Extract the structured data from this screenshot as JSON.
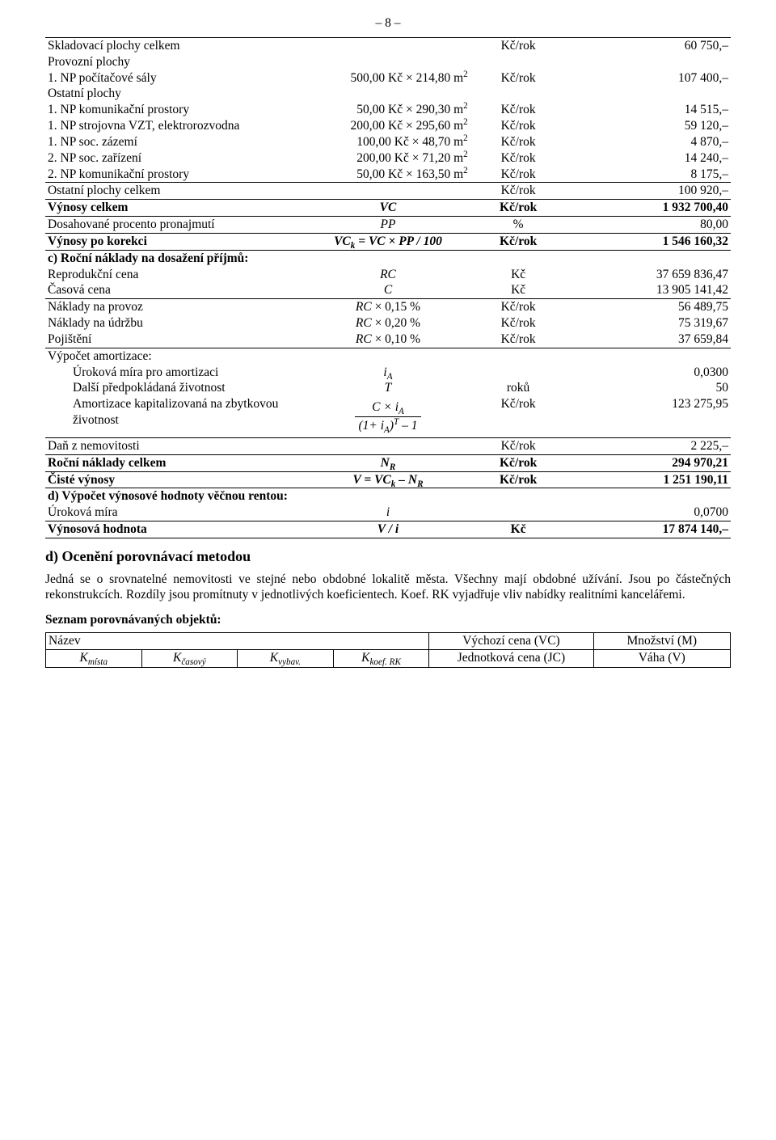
{
  "page_number": "– 8 –",
  "table": {
    "col_widths": [
      "38%",
      "24%",
      "14%",
      "24%"
    ],
    "rows": [
      {
        "c1": "Skladovací plochy celkem",
        "c2": "",
        "c3": "Kč/rok",
        "c4": "60 750,–",
        "bt": true
      },
      {
        "c1": "Provozní plochy",
        "c2": "",
        "c3": "",
        "c4": ""
      },
      {
        "c1": "1. NP počítačové sály",
        "c2_pre": "500,00 Kč × 214,80 m",
        "c2_sup": "2",
        "c3": "Kč/rok",
        "c4": "107 400,–"
      },
      {
        "c1": "Ostatní plochy",
        "c2": "",
        "c3": "",
        "c4": ""
      },
      {
        "c1": "1. NP komunikační prostory",
        "c2_pre": "50,00 Kč × 290,30 m",
        "c2_sup": "2",
        "c3": "Kč/rok",
        "c4": "14 515,–"
      },
      {
        "c1": "1. NP strojovna VZT, elektrorozvodna",
        "c2_pre": "200,00 Kč × 295,60 m",
        "c2_sup": "2",
        "c3": "Kč/rok",
        "c4": "59 120,–"
      },
      {
        "c1": "1. NP soc. zázemí",
        "c2_pre": "100,00 Kč × 48,70 m",
        "c2_sup": "2",
        "c3": "Kč/rok",
        "c4": "4 870,–"
      },
      {
        "c1": "2. NP soc. zařízení",
        "c2_pre": "200,00 Kč × 71,20 m",
        "c2_sup": "2",
        "c3": "Kč/rok",
        "c4": "14 240,–"
      },
      {
        "c1": "2. NP komunikační prostory",
        "c2_pre": "50,00 Kč × 163,50 m",
        "c2_sup": "2",
        "c3": "Kč/rok",
        "c4": "8 175,–"
      },
      {
        "c1": "Ostatní plochy celkem",
        "c2": "",
        "c3": "Kč/rok",
        "c4": "100 920,–",
        "bt": true
      },
      {
        "c1": "Výnosy celkem",
        "c2": "VC",
        "c2_i": true,
        "c3": "Kč/rok",
        "c4": "1 932 700,40",
        "bold": true,
        "bt": true,
        "bb": true
      },
      {
        "c1": "Dosahované procento pronajmutí",
        "c2": "PP",
        "c2_i": true,
        "c3": "%",
        "c4": "80,00"
      },
      {
        "c1": "Výnosy po korekci",
        "c2_html": "<i>VC<span class='sub'>k</span> = VC × PP / 100</i>",
        "c3": "Kč/rok",
        "c4": "1 546 160,32",
        "bold": true,
        "bt": true,
        "bb": true
      },
      {
        "c1": "c) Roční náklady na dosažení příjmů:",
        "colspan4": true,
        "bold": true
      },
      {
        "c1": "Reprodukční cena",
        "c2": "RC",
        "c2_i": true,
        "c3": "Kč",
        "c4": "37 659 836,47"
      },
      {
        "c1": "Časová cena",
        "c2": "C",
        "c2_i": true,
        "c3": "Kč",
        "c4": "13 905 141,42"
      },
      {
        "c1": "Náklady na provoz",
        "c2_html": "<i>RC</i> × 0,15 %",
        "c3": "Kč/rok",
        "c4": "56 489,75",
        "bt": true
      },
      {
        "c1": "Náklady na údržbu",
        "c2_html": "<i>RC</i> × 0,20 %",
        "c3": "Kč/rok",
        "c4": "75 319,67"
      },
      {
        "c1": "Pojištění",
        "c2_html": "<i>RC</i> × 0,10 %",
        "c3": "Kč/rok",
        "c4": "37 659,84"
      },
      {
        "c1": "Výpočet amortizace:",
        "c2": "",
        "c3": "",
        "c4": "",
        "bt": true
      },
      {
        "c1_indent": "Úroková míra pro amortizaci",
        "c2_html": "<i>i<span class='sub'>A</span></i>",
        "c3": "",
        "c4": "0,0300"
      },
      {
        "c1_indent": "Další předpokládaná životnost",
        "c2": "T",
        "c2_i": true,
        "c3": "roků",
        "c4": "50"
      },
      {
        "c1_indent": "Amortizace kapitalizovaná na zbytkovou životnost",
        "c2_formula": {
          "num": "C × i<span class='sub'>A</span>",
          "den": "(1+ i<span class='sub'>A</span>)<span class='sup'>T</span> – 1"
        },
        "c3": "Kč/rok",
        "c4": "123 275,95"
      },
      {
        "c1": "Daň z nemovitosti",
        "c2": "",
        "c3": "Kč/rok",
        "c4": "2 225,–",
        "bt": true
      },
      {
        "c1": "Roční náklady celkem",
        "c2_html": "<i>N<span class='sub'>R</span></i>",
        "c3": "Kč/rok",
        "c4": "294 970,21",
        "bold": true,
        "bt": true,
        "bb": true
      },
      {
        "c1": "Čisté výnosy",
        "c2_html": "<i>V = VC<span class='sub'>k</span> – N<span class='sub'>R</span></i>",
        "c3": "Kč/rok",
        "c4": "1 251 190,11",
        "bold": true,
        "bb": true
      },
      {
        "c1": "d) Výpočet výnosové hodnoty věčnou rentou:",
        "colspan4": true,
        "bold": true
      },
      {
        "c1": "Úroková míra",
        "c2": "i",
        "c2_i": true,
        "c3": "",
        "c4": "0,0700"
      },
      {
        "c1": "Výnosová hodnota",
        "c2_html": "<i>V / i</i>",
        "c3": "Kč",
        "c4": "17 874 140,–",
        "bold": true,
        "bt": true,
        "bb": true
      }
    ]
  },
  "section_d": {
    "heading": "d) Ocenění porovnávací metodou",
    "paragraph": "Jedná se o srovnatelné nemovitosti ve stejné nebo obdobné lokalitě města. Všechny mají obdobné užívání. Jsou po částečných rekonstrukcích. Rozdíly jsou promítnuty v jednotlivých koeficientech. Koef. RK vyjadřuje vliv nabídky realitními kancelářemi.",
    "seznam_label": "Seznam porovnávaných objektů:"
  },
  "table2": {
    "r1": {
      "nazev": "Název",
      "vc": "Výchozí cena (VC)",
      "m": "Množství (M)"
    },
    "r2": {
      "k1": "K",
      "k1s": "místa",
      "k2": "K",
      "k2s": "časový",
      "k3": "K",
      "k3s": "vybav.",
      "k4": "K",
      "k4s": "koef. RK",
      "jc": "Jednotková cena (JC)",
      "v": "Váha (V)"
    }
  }
}
